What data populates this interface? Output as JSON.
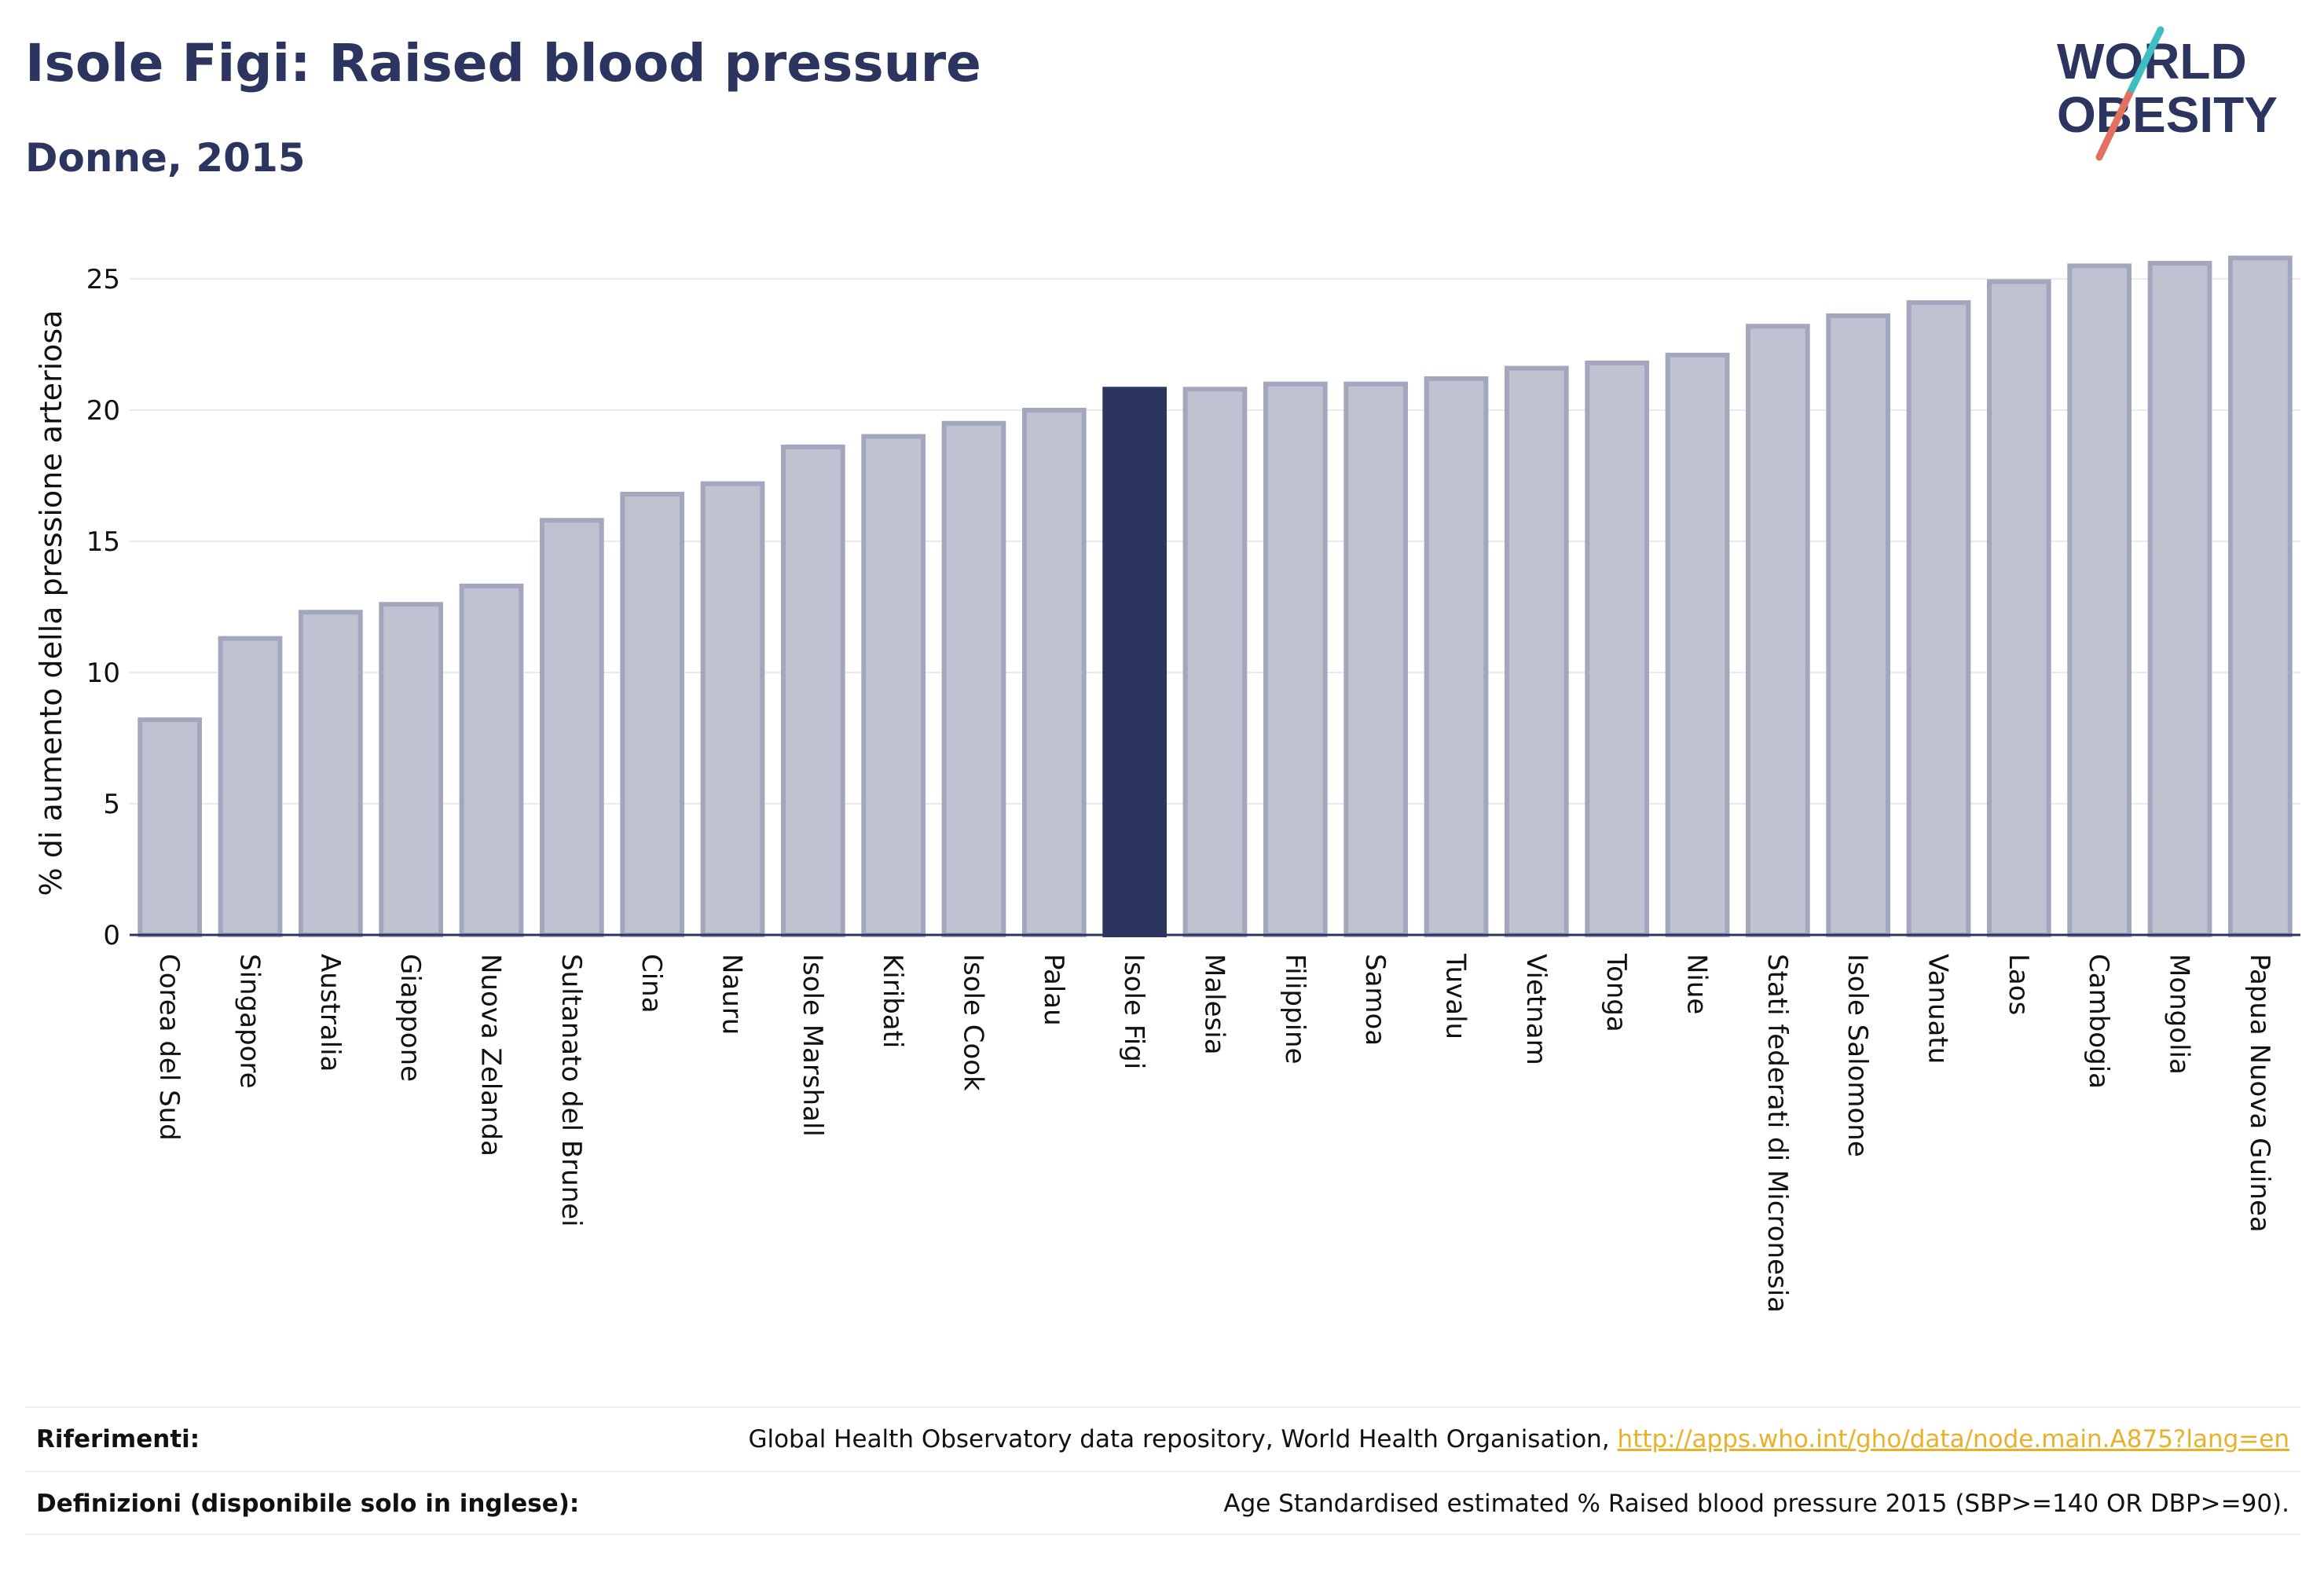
{
  "title": "Isole Figi: Raised blood pressure",
  "subtitle": "Donne, 2015",
  "logo": {
    "line1": "WORLD",
    "line2": "OBESITY",
    "text_color": "#2b3560",
    "slash_top_color": "#3dbfc2",
    "slash_bottom_color": "#e4705f"
  },
  "colors": {
    "bar_default_fill": "#bfc2d0",
    "bar_default_stroke": "#a2a7bd",
    "bar_highlight": "#2b3560",
    "grid": "#e9eaef",
    "axis": "#2b3560"
  },
  "chart_data": {
    "type": "bar",
    "title": "Isole Figi: Raised blood pressure",
    "subtitle": "Donne, 2015",
    "xlabel": "",
    "ylabel": "% di aumento della pressione arteriosa",
    "ylim": [
      0,
      26.5
    ],
    "yticks": [
      0,
      5,
      10,
      15,
      20,
      25
    ],
    "grid": true,
    "highlight": "Isole Figi",
    "categories": [
      "Corea del Sud",
      "Singapore",
      "Australia",
      "Giappone",
      "Nuova Zelanda",
      "Sultanato del Brunei",
      "Cina",
      "Nauru",
      "Isole Marshall",
      "Kiribati",
      "Isole Cook",
      "Palau",
      "Isole Figi",
      "Malesia",
      "Filippine",
      "Samoa",
      "Tuvalu",
      "Vietnam",
      "Tonga",
      "Niue",
      "Stati federati di Micronesia",
      "Isole Salomone",
      "Vanuatu",
      "Laos",
      "Cambogia",
      "Mongolia",
      "Papua Nuova Guinea"
    ],
    "values": [
      8.2,
      11.3,
      12.3,
      12.6,
      13.3,
      15.8,
      16.8,
      17.2,
      18.6,
      19.0,
      19.5,
      20.0,
      20.8,
      20.8,
      21.0,
      21.0,
      21.2,
      21.6,
      21.8,
      22.1,
      23.2,
      23.6,
      24.1,
      24.9,
      25.5,
      25.6,
      25.8
    ]
  },
  "footer": {
    "references_label": "Riferimenti:",
    "references_text": "Global Health Observatory data repository, World Health Organisation, ",
    "references_link": "http://apps.who.int/gho/data/node.main.A875?lang=en",
    "definitions_label": "Definizioni (disponibile solo in inglese):",
    "definitions_text": "Age Standardised estimated % Raised blood pressure 2015 (SBP>=140 OR DBP>=90)."
  }
}
